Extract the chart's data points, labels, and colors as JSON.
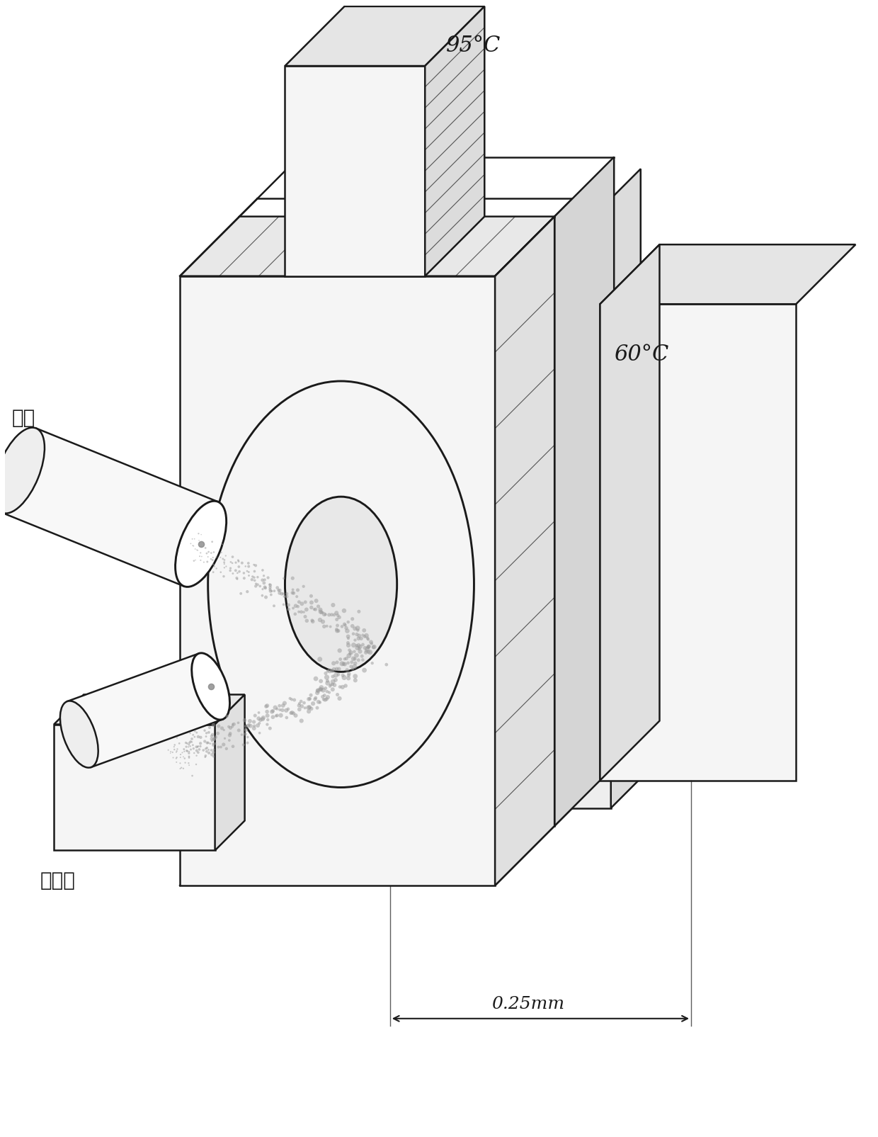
{
  "bg_color": "#ffffff",
  "line_color": "#1a1a1a",
  "label_guang_yuan": "光源",
  "label_jian_ce_qi": "检测器",
  "label_95c": "95°C",
  "label_60c": "60°C",
  "label_025mm": "0.25mm",
  "font_size_labels": 20,
  "font_size_temp": 22,
  "iso_ox": 0.7,
  "iso_oy": 0.7
}
